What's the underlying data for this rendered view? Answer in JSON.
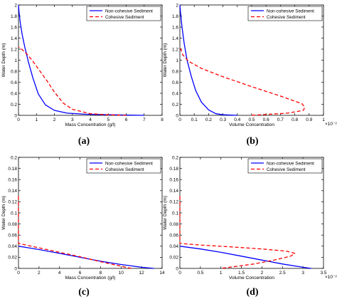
{
  "chart_data": [
    {
      "type": "line",
      "caption": "(a)",
      "xlabel": "Mass Concentration (g/l)",
      "ylabel": "Water Depth (m)",
      "xlim": [
        0,
        8
      ],
      "ylim": [
        0,
        2
      ],
      "xticks": [
        "0",
        "1",
        "2",
        "3",
        "4",
        "5",
        "6",
        "7",
        "8"
      ],
      "yticks": [
        "0",
        "0.2",
        "0.4",
        "0.6",
        "0.8",
        "1",
        "1.2",
        "1.4",
        "1.6",
        "1.8",
        "2"
      ],
      "exponent": "",
      "legend_position": "top-right",
      "grid": false,
      "series": [
        {
          "name": "Non-cohesive Sediment",
          "color": "#0000ff",
          "dash": "solid",
          "x": [
            7.0,
            5.0,
            3.7,
            2.7,
            2.0,
            1.5,
            1.1,
            0.8,
            0.55,
            0.35,
            0.2,
            0.1,
            0.03,
            0
          ],
          "y": [
            0,
            0.01,
            0.02,
            0.04,
            0.09,
            0.19,
            0.39,
            0.68,
            0.97,
            1.24,
            1.47,
            1.68,
            1.87,
            2.0
          ]
        },
        {
          "name": "Cohesive Sediment",
          "color": "#ff0000",
          "dash": "dashed",
          "x": [
            6.0,
            5.0,
            4.0,
            3.0,
            2.5,
            2.0,
            1.6,
            1.2,
            0.8,
            0.5,
            0.25,
            0.05,
            0
          ],
          "y": [
            0,
            0.01,
            0.03,
            0.11,
            0.22,
            0.42,
            0.62,
            0.8,
            0.98,
            1.1,
            1.18,
            1.23,
            1.24
          ]
        }
      ]
    },
    {
      "type": "line",
      "caption": "(b)",
      "xlabel": "Volume Concentration",
      "ylabel": "Water Depth (m)",
      "xlim": [
        0,
        1
      ],
      "ylim": [
        0,
        2
      ],
      "xticks": [
        "0",
        "0.1",
        "0.2",
        "0.3",
        "0.4",
        "0.5",
        "0.6",
        "0.7",
        "0.8",
        "0.9",
        "1"
      ],
      "yticks": [
        "0",
        "0.2",
        "0.4",
        "0.6",
        "0.8",
        "1",
        "1.2",
        "1.4",
        "1.6",
        "1.8",
        "2"
      ],
      "exponent": "×10⁻²",
      "legend_position": "top-right",
      "grid": false,
      "series": [
        {
          "name": "Non-cohesive Sediment",
          "color": "#0000ff",
          "dash": "solid",
          "x": [
            0.4,
            0.3,
            0.25,
            0.2,
            0.15,
            0.11,
            0.08,
            0.05,
            0.03,
            0.015,
            0.005,
            0
          ],
          "y": [
            0,
            0.01,
            0.03,
            0.1,
            0.24,
            0.45,
            0.7,
            1.0,
            1.3,
            1.6,
            1.85,
            2.0
          ]
        },
        {
          "name": "Cohesive Sediment",
          "color": "#ff0000",
          "dash": "dashed",
          "x": [
            0.5,
            0.75,
            0.86,
            0.87,
            0.85,
            0.7,
            0.5,
            0.3,
            0.15,
            0.06,
            0.02,
            0
          ],
          "y": [
            0,
            0.04,
            0.09,
            0.15,
            0.21,
            0.35,
            0.52,
            0.7,
            0.85,
            0.98,
            1.1,
            1.24
          ]
        }
      ]
    },
    {
      "type": "line",
      "caption": "(c)",
      "xlabel": "Mass Concentration (g/l)",
      "ylabel": "Water Depth (m)",
      "xlim": [
        0,
        14
      ],
      "ylim": [
        0,
        0.2
      ],
      "xticks": [
        "0",
        "2",
        "4",
        "6",
        "8",
        "10",
        "12",
        "14"
      ],
      "yticks": [
        "0",
        "0.02",
        "0.04",
        "0.06",
        "0.08",
        "0.1",
        "0.12",
        "0.14",
        "0.16",
        "0.18",
        "0.2"
      ],
      "exponent": "",
      "legend_position": "top-right",
      "grid": false,
      "series": [
        {
          "name": "Non-cohesive Sediment",
          "color": "#0000ff",
          "dash": "solid",
          "x": [
            0,
            1,
            2,
            4,
            6,
            8,
            10,
            12,
            13.2
          ],
          "y": [
            0.04,
            0.037,
            0.034,
            0.027,
            0.02,
            0.013,
            0.007,
            0.002,
            0
          ]
        },
        {
          "name": "Cohesive Sediment",
          "color": "#ff0000",
          "dash": "dashed",
          "x": [
            0,
            0,
            0,
            0,
            1,
            2,
            4,
            6,
            8,
            9.5,
            11
          ],
          "y": [
            0.13,
            0.1,
            0.07,
            0.045,
            0.041,
            0.037,
            0.029,
            0.021,
            0.012,
            0.006,
            0
          ]
        }
      ]
    },
    {
      "type": "line",
      "caption": "(d)",
      "xlabel": "Volume Concentration",
      "ylabel": "Water Depth (m)",
      "xlim": [
        0,
        3.5
      ],
      "ylim": [
        0,
        0.2
      ],
      "xticks": [
        "0",
        "0.5",
        "1",
        "1.5",
        "2",
        "2.5",
        "3",
        "3.5"
      ],
      "yticks": [
        "0",
        "0.02",
        "0.04",
        "0.06",
        "0.08",
        "0.1",
        "0.12",
        "0.14",
        "0.16",
        "0.18",
        "0.2"
      ],
      "exponent": "×10⁻²",
      "legend_position": "top-right",
      "grid": false,
      "series": [
        {
          "name": "Non-cohesive Sediment",
          "color": "#0000ff",
          "dash": "solid",
          "x": [
            0,
            0.5,
            1,
            1.5,
            2,
            2.5,
            3,
            3.2
          ],
          "y": [
            0.04,
            0.035,
            0.029,
            0.022,
            0.015,
            0.008,
            0.002,
            0
          ]
        },
        {
          "name": "Cohesive Sediment",
          "color": "#ff0000",
          "dash": "dashed",
          "x": [
            0,
            0,
            0,
            0.5,
            1.2,
            2.0,
            2.6,
            2.8,
            2.7,
            2.3,
            1.8,
            1.3,
            1.0
          ],
          "y": [
            0.13,
            0.08,
            0.045,
            0.042,
            0.039,
            0.035,
            0.031,
            0.027,
            0.022,
            0.015,
            0.008,
            0.003,
            0
          ]
        }
      ]
    }
  ]
}
